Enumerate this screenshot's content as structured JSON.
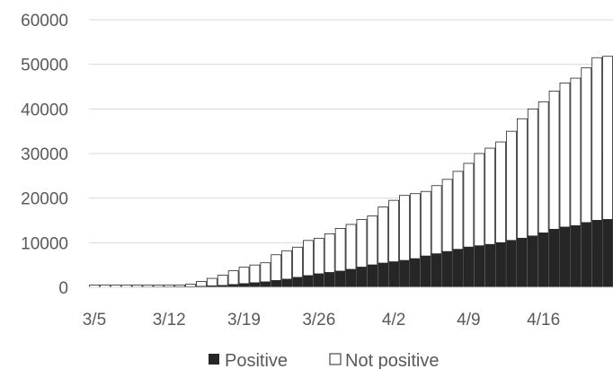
{
  "chart_data": {
    "type": "bar",
    "stacked": true,
    "categories": [
      "3/5",
      "3/6",
      "3/7",
      "3/8",
      "3/9",
      "3/10",
      "3/11",
      "3/12",
      "3/13",
      "3/14",
      "3/15",
      "3/16",
      "3/17",
      "3/18",
      "3/19",
      "3/20",
      "3/21",
      "3/22",
      "3/23",
      "3/24",
      "3/25",
      "3/26",
      "3/27",
      "3/28",
      "3/29",
      "3/30",
      "3/31",
      "4/1",
      "4/2",
      "4/3",
      "4/4",
      "4/5",
      "4/6",
      "4/7",
      "4/8",
      "4/9",
      "4/10",
      "4/11",
      "4/12",
      "4/13",
      "4/14",
      "4/15",
      "4/16",
      "4/17",
      "4/18",
      "4/19",
      "4/20",
      "4/21",
      "4/22"
    ],
    "x_tick_labels": [
      "3/5",
      "3/12",
      "3/19",
      "3/26",
      "4/2",
      "4/9",
      "4/16"
    ],
    "series": [
      {
        "name": "Positive",
        "color": "#262626",
        "values": [
          10,
          15,
          20,
          25,
          35,
          45,
          55,
          70,
          90,
          120,
          200,
          300,
          400,
          600,
          800,
          1000,
          1200,
          1500,
          1800,
          2200,
          2600,
          3000,
          3300,
          3600,
          4000,
          4500,
          5000,
          5400,
          5700,
          6000,
          6400,
          7000,
          7500,
          8000,
          8500,
          9000,
          9300,
          9600,
          10000,
          10500,
          11000,
          11500,
          12200,
          13000,
          13500,
          13800,
          14500,
          15000,
          15200
        ]
      },
      {
        "name": "Not positive",
        "color": "#ffffff",
        "values": [
          490,
          485,
          480,
          475,
          465,
          455,
          445,
          430,
          410,
          580,
          1100,
          1700,
          2300,
          3100,
          3700,
          4000,
          4300,
          5800,
          6400,
          6800,
          7900,
          8000,
          8700,
          9600,
          10100,
          10700,
          11000,
          12600,
          13800,
          14600,
          14600,
          14500,
          15300,
          16200,
          17500,
          18800,
          20700,
          21600,
          22600,
          24500,
          26800,
          28500,
          29400,
          31000,
          32300,
          33100,
          34700,
          36500,
          36600
        ]
      }
    ],
    "ylim": [
      0,
      60000
    ],
    "yticks": [
      0,
      10000,
      20000,
      30000,
      40000,
      50000,
      60000
    ],
    "grid": true,
    "legend": "bottom"
  }
}
